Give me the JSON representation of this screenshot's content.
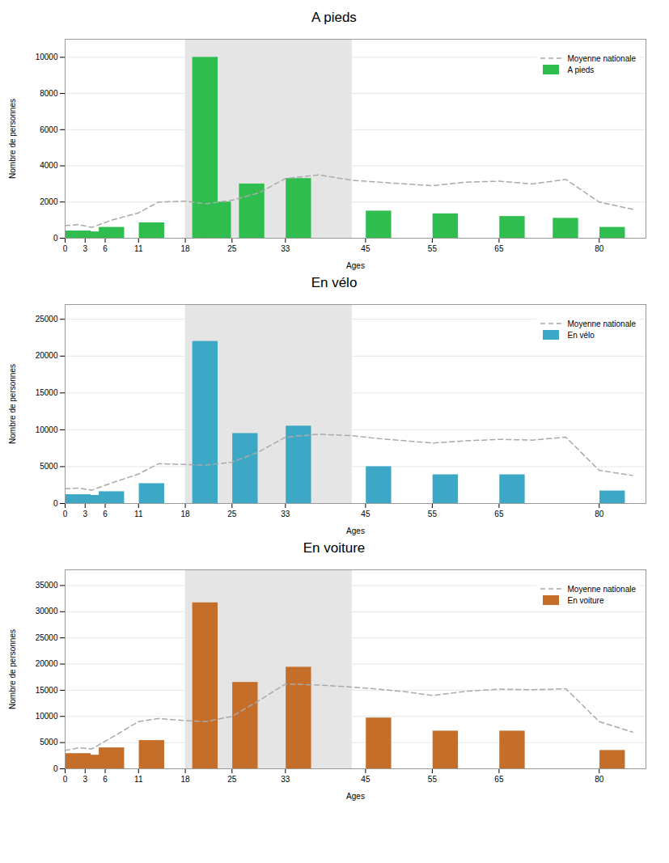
{
  "chart_data": [
    {
      "type": "bar",
      "title": "A pieds",
      "xlabel": "Ages",
      "ylabel": "Nombre de personnes",
      "xlim": [
        0,
        87
      ],
      "xticks": [
        0,
        3,
        6,
        11,
        18,
        25,
        33,
        45,
        55,
        65,
        80
      ],
      "ylim": [
        0,
        11000
      ],
      "yticks": [
        0,
        2000,
        4000,
        6000,
        8000,
        10000
      ],
      "grid": true,
      "legend": "upper right",
      "highlight": {
        "range": [
          18,
          43
        ],
        "color": "#e5e5e5"
      },
      "series": [
        {
          "name": "Moyenne nationale",
          "type": "line",
          "line_style": "dashed",
          "color": "#aaaaaa",
          "x": [
            0,
            2,
            4,
            7,
            11,
            14,
            18,
            21,
            25,
            29,
            33,
            38,
            43,
            47,
            51,
            55,
            60,
            65,
            70,
            75,
            80,
            85
          ],
          "values": [
            700,
            750,
            600,
            1000,
            1400,
            2000,
            2050,
            1900,
            2100,
            2500,
            3300,
            3500,
            3200,
            3100,
            3000,
            2900,
            3100,
            3150,
            3000,
            3250,
            2000,
            1600
          ]
        },
        {
          "name": "A pieds",
          "type": "bar",
          "color": "#2ebd4e",
          "x": [
            2,
            4,
            7,
            13,
            21,
            23,
            28,
            35,
            47,
            57,
            67,
            75,
            82
          ],
          "values": [
            400,
            350,
            600,
            850,
            10000,
            2000,
            3000,
            3300,
            1500,
            1350,
            1200,
            1100,
            600
          ]
        }
      ]
    },
    {
      "type": "bar",
      "title": "En vélo",
      "xlabel": "Ages",
      "ylabel": "Nombre de personnes",
      "xlim": [
        0,
        87
      ],
      "xticks": [
        0,
        3,
        6,
        11,
        18,
        25,
        33,
        45,
        55,
        65,
        80
      ],
      "ylim": [
        0,
        27000
      ],
      "yticks": [
        0,
        5000,
        10000,
        15000,
        20000,
        25000
      ],
      "grid": true,
      "legend": "upper right",
      "highlight": {
        "range": [
          18,
          43
        ],
        "color": "#e5e5e5"
      },
      "series": [
        {
          "name": "Moyenne nationale",
          "type": "line",
          "line_style": "dashed",
          "color": "#aaaaaa",
          "x": [
            0,
            2,
            4,
            7,
            11,
            14,
            18,
            21,
            25,
            29,
            33,
            38,
            43,
            47,
            51,
            55,
            60,
            65,
            70,
            75,
            80,
            85
          ],
          "values": [
            2000,
            2100,
            1800,
            2800,
            4000,
            5400,
            5300,
            5200,
            5600,
            7000,
            9000,
            9400,
            9200,
            8800,
            8500,
            8200,
            8500,
            8700,
            8600,
            9000,
            4500,
            3800
          ]
        },
        {
          "name": "En vélo",
          "type": "bar",
          "color": "#3da8c5",
          "x": [
            2,
            4,
            7,
            13,
            21,
            27,
            35,
            47,
            57,
            67,
            82
          ],
          "values": [
            1200,
            1100,
            1600,
            2700,
            22000,
            9500,
            10500,
            5000,
            3900,
            3900,
            1700
          ]
        }
      ]
    },
    {
      "type": "bar",
      "title": "En voiture",
      "xlabel": "Ages",
      "ylabel": "Nombre de personnes",
      "xlim": [
        0,
        87
      ],
      "xticks": [
        0,
        3,
        6,
        11,
        18,
        25,
        33,
        45,
        55,
        65,
        80
      ],
      "ylim": [
        0,
        38000
      ],
      "yticks": [
        0,
        5000,
        10000,
        15000,
        20000,
        25000,
        30000,
        35000
      ],
      "grid": true,
      "legend": "upper right",
      "highlight": {
        "range": [
          18,
          43
        ],
        "color": "#e5e5e5"
      },
      "series": [
        {
          "name": "Moyenne nationale",
          "type": "line",
          "line_style": "dashed",
          "color": "#aaaaaa",
          "x": [
            0,
            2,
            4,
            7,
            11,
            14,
            18,
            21,
            25,
            29,
            33,
            38,
            43,
            47,
            51,
            55,
            60,
            65,
            70,
            75,
            80,
            85
          ],
          "values": [
            3500,
            4000,
            3800,
            6000,
            9000,
            9600,
            9200,
            9000,
            10000,
            13000,
            16200,
            16000,
            15600,
            15200,
            14700,
            14000,
            14800,
            15200,
            15100,
            15300,
            9000,
            7000
          ]
        },
        {
          "name": "En voiture",
          "type": "bar",
          "color": "#c46e2a",
          "x": [
            2,
            4,
            7,
            13,
            21,
            27,
            35,
            47,
            57,
            67,
            82
          ],
          "values": [
            2900,
            2600,
            4000,
            5400,
            31700,
            16500,
            19400,
            9700,
            7200,
            7200,
            3500
          ]
        }
      ]
    }
  ]
}
